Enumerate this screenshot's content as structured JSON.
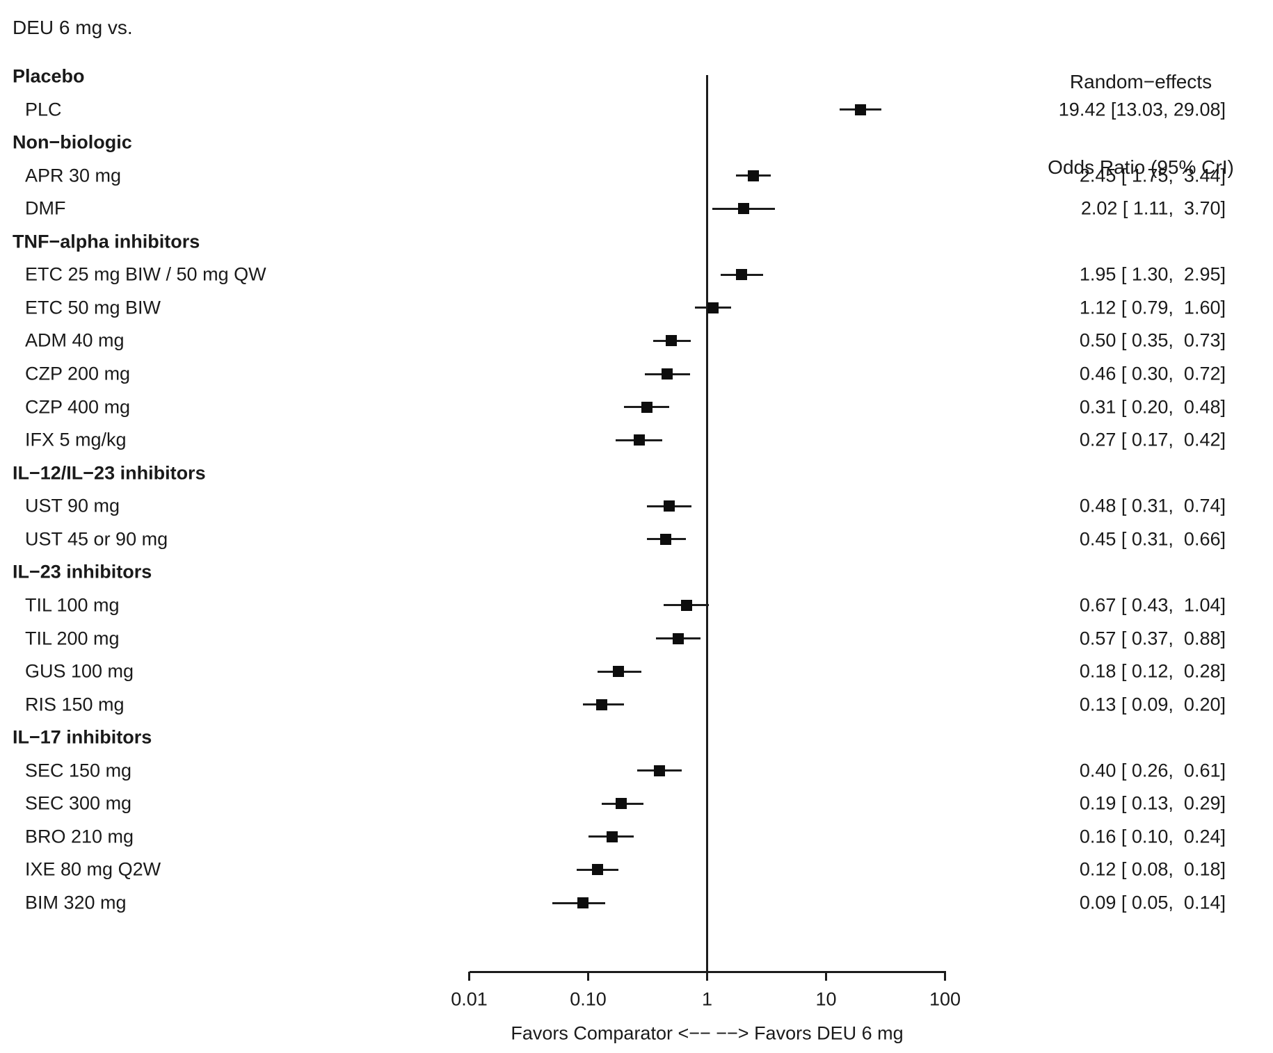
{
  "header": {
    "title": "DEU 6 mg vs.",
    "effect_column": {
      "line1": "Random−effects",
      "line2": "Odds Ratio (95% CrI)"
    }
  },
  "colors": {
    "text": "#1a1a1a",
    "line": "#1c1c1c",
    "marker": "#0d0d0d",
    "background": "#ffffff"
  },
  "chart_data": {
    "type": "forest",
    "title": "DEU 6 mg vs.",
    "effect_label": "Random−effects Odds Ratio (95% CrI)",
    "scale": "log10",
    "xlim": [
      0.01,
      100
    ],
    "ref_value": 1,
    "axis": {
      "ticks": [
        {
          "value": 0.01,
          "label": "0.01"
        },
        {
          "value": 0.1,
          "label": "0.10"
        },
        {
          "value": 1,
          "label": "1"
        },
        {
          "value": 10,
          "label": "10"
        },
        {
          "value": 100,
          "label": "100"
        }
      ],
      "xlabel": "Favors Comparator <−− −−> Favors DEU 6 mg"
    },
    "rows": [
      {
        "kind": "group",
        "label": "Placebo"
      },
      {
        "kind": "item",
        "label": "PLC",
        "or": 19.42,
        "lo": 13.03,
        "hi": 29.08,
        "text": "19.42 [13.03, 29.08]"
      },
      {
        "kind": "group",
        "label": "Non−biologic"
      },
      {
        "kind": "item",
        "label": "APR 30 mg",
        "or": 2.45,
        "lo": 1.75,
        "hi": 3.44,
        "text": "2.45 [ 1.75,  3.44]"
      },
      {
        "kind": "item",
        "label": "DMF",
        "or": 2.02,
        "lo": 1.11,
        "hi": 3.7,
        "text": "2.02 [ 1.11,  3.70]"
      },
      {
        "kind": "group",
        "label": "TNF−alpha inhibitors"
      },
      {
        "kind": "item",
        "label": "ETC 25 mg BIW / 50 mg QW",
        "or": 1.95,
        "lo": 1.3,
        "hi": 2.95,
        "text": "1.95 [ 1.30,  2.95]"
      },
      {
        "kind": "item",
        "label": "ETC 50 mg BIW",
        "or": 1.12,
        "lo": 0.79,
        "hi": 1.6,
        "text": "1.12 [ 0.79,  1.60]"
      },
      {
        "kind": "item",
        "label": "ADM 40 mg",
        "or": 0.5,
        "lo": 0.35,
        "hi": 0.73,
        "text": "0.50 [ 0.35,  0.73]"
      },
      {
        "kind": "item",
        "label": "CZP 200 mg",
        "or": 0.46,
        "lo": 0.3,
        "hi": 0.72,
        "text": "0.46 [ 0.30,  0.72]"
      },
      {
        "kind": "item",
        "label": "CZP 400 mg",
        "or": 0.31,
        "lo": 0.2,
        "hi": 0.48,
        "text": "0.31 [ 0.20,  0.48]"
      },
      {
        "kind": "item",
        "label": "IFX 5 mg/kg",
        "or": 0.27,
        "lo": 0.17,
        "hi": 0.42,
        "text": "0.27 [ 0.17,  0.42]"
      },
      {
        "kind": "group",
        "label": "IL−12/IL−23 inhibitors"
      },
      {
        "kind": "item",
        "label": "UST 90 mg",
        "or": 0.48,
        "lo": 0.31,
        "hi": 0.74,
        "text": "0.48 [ 0.31,  0.74]"
      },
      {
        "kind": "item",
        "label": "UST 45 or 90 mg",
        "or": 0.45,
        "lo": 0.31,
        "hi": 0.66,
        "text": "0.45 [ 0.31,  0.66]"
      },
      {
        "kind": "group",
        "label": "IL−23 inhibitors"
      },
      {
        "kind": "item",
        "label": "TIL 100 mg",
        "or": 0.67,
        "lo": 0.43,
        "hi": 1.04,
        "text": "0.67 [ 0.43,  1.04]"
      },
      {
        "kind": "item",
        "label": "TIL 200 mg",
        "or": 0.57,
        "lo": 0.37,
        "hi": 0.88,
        "text": "0.57 [ 0.37,  0.88]"
      },
      {
        "kind": "item",
        "label": "GUS 100 mg",
        "or": 0.18,
        "lo": 0.12,
        "hi": 0.28,
        "text": "0.18 [ 0.12,  0.28]"
      },
      {
        "kind": "item",
        "label": "RIS 150 mg",
        "or": 0.13,
        "lo": 0.09,
        "hi": 0.2,
        "text": "0.13 [ 0.09,  0.20]"
      },
      {
        "kind": "group",
        "label": "IL−17 inhibitors"
      },
      {
        "kind": "item",
        "label": "SEC 150 mg",
        "or": 0.4,
        "lo": 0.26,
        "hi": 0.61,
        "text": "0.40 [ 0.26,  0.61]"
      },
      {
        "kind": "item",
        "label": "SEC 300 mg",
        "or": 0.19,
        "lo": 0.13,
        "hi": 0.29,
        "text": "0.19 [ 0.13,  0.29]"
      },
      {
        "kind": "item",
        "label": "BRO 210 mg",
        "or": 0.16,
        "lo": 0.1,
        "hi": 0.24,
        "text": "0.16 [ 0.10,  0.24]"
      },
      {
        "kind": "item",
        "label": "IXE 80 mg Q2W",
        "or": 0.12,
        "lo": 0.08,
        "hi": 0.18,
        "text": "0.12 [ 0.08,  0.18]"
      },
      {
        "kind": "item",
        "label": "BIM 320 mg",
        "or": 0.09,
        "lo": 0.05,
        "hi": 0.14,
        "text": "0.09 [ 0.05,  0.14]"
      }
    ]
  }
}
